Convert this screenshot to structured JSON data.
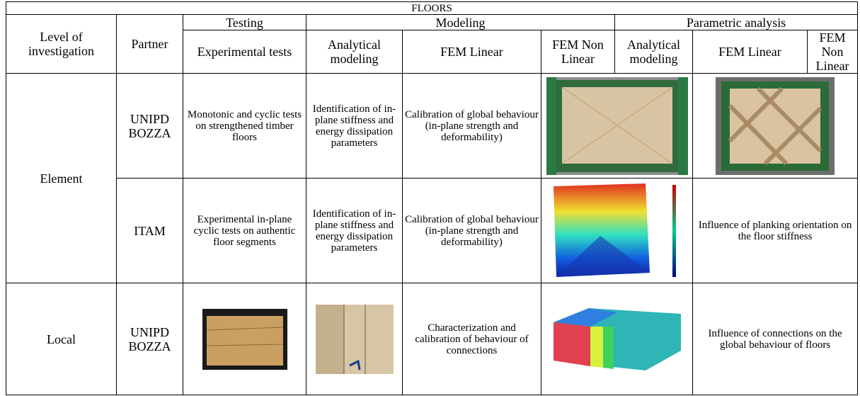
{
  "header": {
    "title": "FLOORS",
    "groups": [
      "Testing",
      "Modeling",
      "Parametric analysis"
    ],
    "columns": [
      "Level of investigation",
      "Partner",
      "Experimental tests",
      "Analytical modeling",
      "FEM Linear",
      "FEM Non Linear",
      "Analytical modeling",
      "FEM Linear",
      "FEM Non Linear"
    ]
  },
  "rows": [
    {
      "level": "Element",
      "partner": "UNIPD BOZZA",
      "testing": "Monotonic and cyclic tests on strengthened timber floors",
      "analytical": "Identification of in-plane stiffness and energy dissipation parameters",
      "fem_linear": "Calibration of global behaviour (in-plane strength and deformability)"
    },
    {
      "partner": "ITAM",
      "testing": "Experimental in-plane cyclic tests on authentic floor segments",
      "analytical": "Identification of in-plane stiffness and energy dissipation parameters",
      "fem_linear": "Calibration of global behaviour (in-plane strength and deformability)",
      "parametric": "Influence of planking orientation on the floor stiffness"
    },
    {
      "level": "Local",
      "partner": "UNIPD BOZZA",
      "fem_linear": "Characterization and calibration of behaviour of connections",
      "parametric": "Influence of connections on the global behaviour of floors"
    }
  ]
}
